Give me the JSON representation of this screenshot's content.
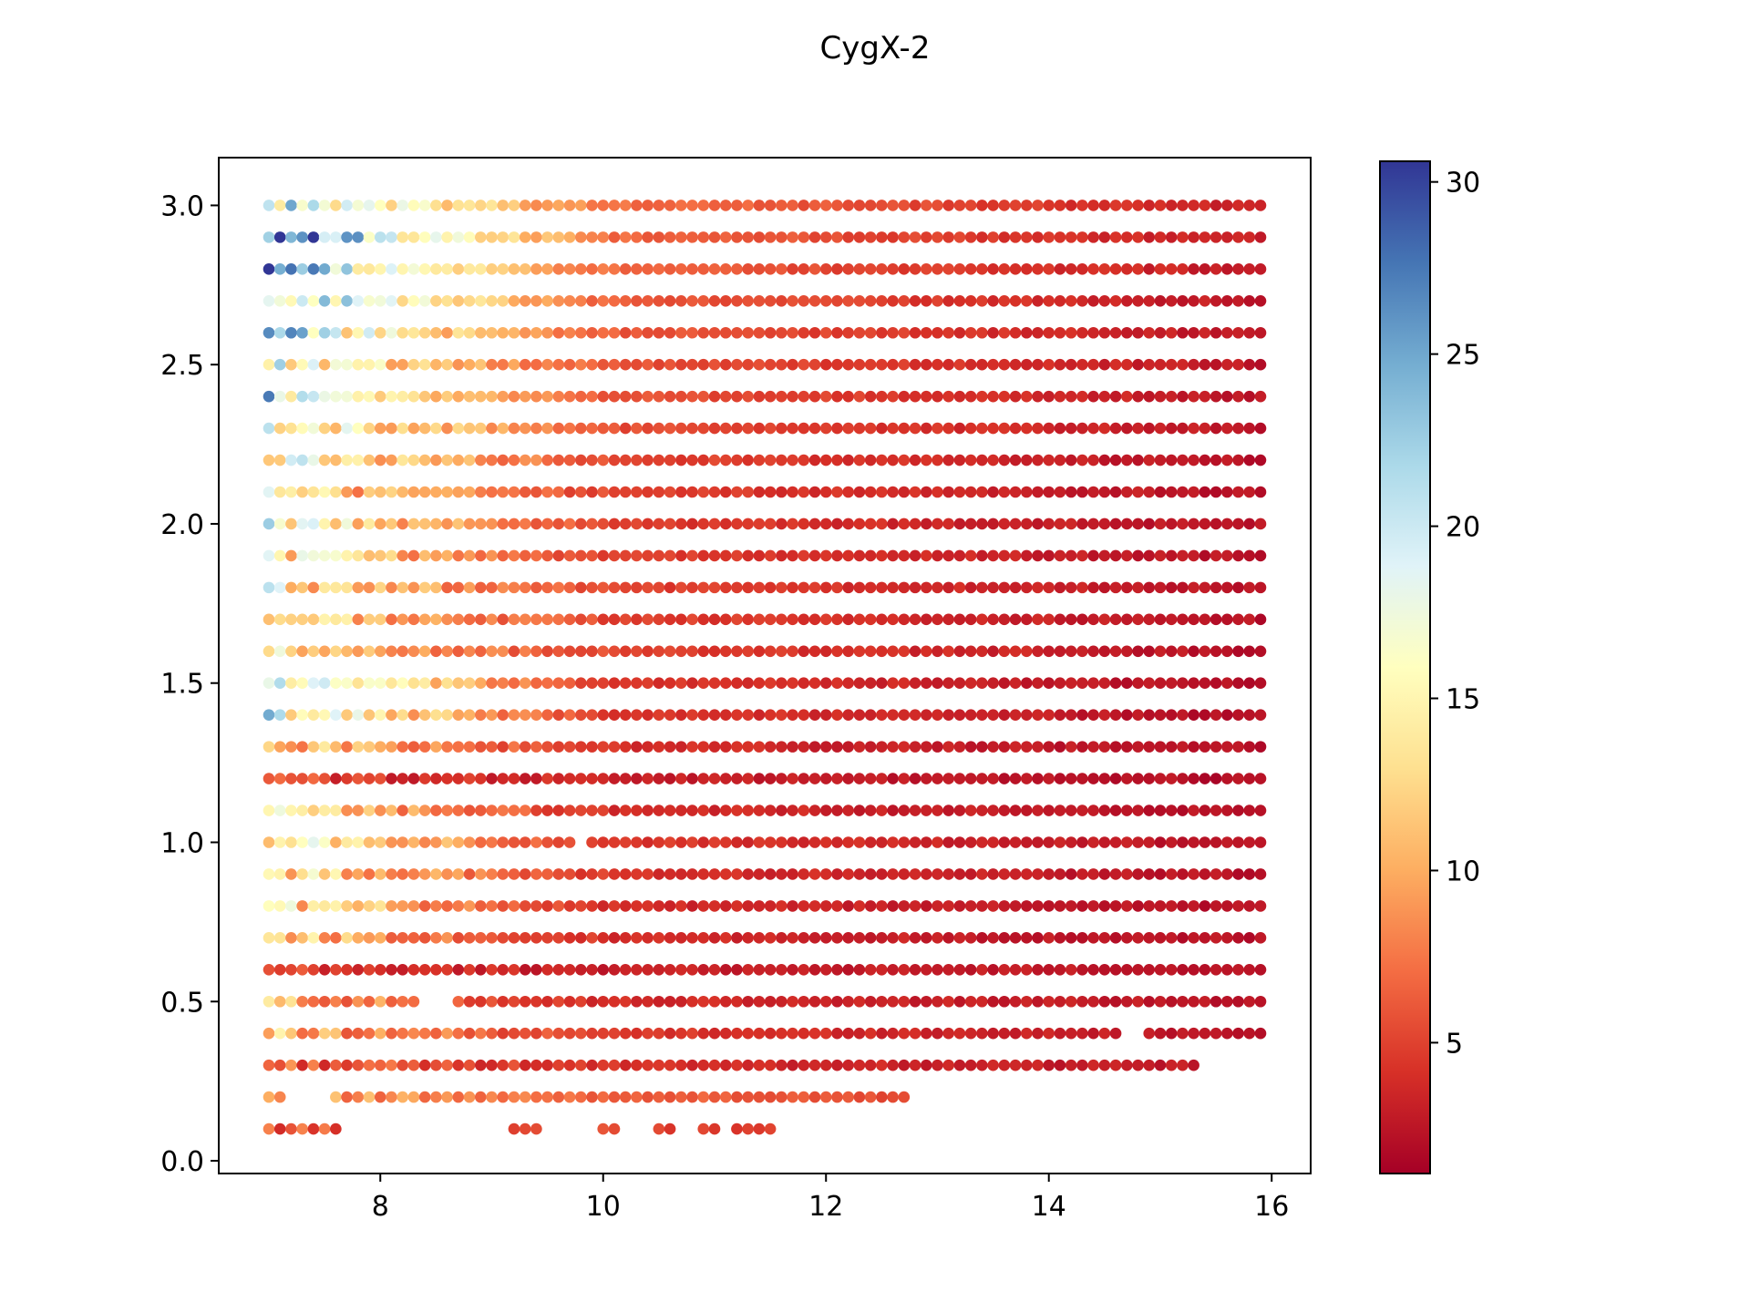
{
  "chart_data": {
    "type": "scatter",
    "title": "CygX-2",
    "xlabel": "",
    "ylabel": "",
    "xlim": [
      6.55,
      16.35
    ],
    "ylim": [
      -0.04,
      3.15
    ],
    "xticks": [
      8,
      10,
      12,
      14,
      16
    ],
    "xtick_labels": [
      "8",
      "10",
      "12",
      "14",
      "16"
    ],
    "yticks": [
      0.0,
      0.5,
      1.0,
      1.5,
      2.0,
      2.5,
      3.0
    ],
    "ytick_labels": [
      "0.0",
      "0.5",
      "1.0",
      "1.5",
      "2.0",
      "2.5",
      "3.0"
    ],
    "grid": false,
    "colorbar": {
      "colormap": "RdYlBu",
      "range": [
        1.2,
        30.6
      ],
      "ticks": [
        5,
        10,
        15,
        20,
        25,
        30
      ],
      "tick_labels": [
        "5",
        "10",
        "15",
        "20",
        "25",
        "30"
      ]
    },
    "x_grid": {
      "start": 7.0,
      "step": 0.1,
      "count": 90
    },
    "y_levels": [
      0.1,
      0.2,
      0.3,
      0.4,
      0.5,
      0.6,
      0.7,
      0.8,
      0.9,
      1.0,
      1.1,
      1.2,
      1.3,
      1.4,
      1.5,
      1.6,
      1.7,
      1.8,
      1.9,
      2.0,
      2.1,
      2.2,
      2.3,
      2.4,
      2.5,
      2.6,
      2.7,
      2.8,
      2.9,
      3.0
    ],
    "row_extents": [
      {
        "y": 0.1,
        "segments": [
          [
            7.0,
            7.6
          ],
          [
            9.2,
            9.4
          ],
          [
            10.0,
            10.1
          ],
          [
            10.5,
            10.6
          ],
          [
            10.9,
            11.0
          ],
          [
            11.2,
            11.5
          ]
        ]
      },
      {
        "y": 0.2,
        "segments": [
          [
            7.0,
            7.1
          ],
          [
            7.6,
            12.7
          ]
        ]
      },
      {
        "y": 0.3,
        "segments": [
          [
            7.0,
            15.3
          ]
        ]
      },
      {
        "y": 0.4,
        "segments": [
          [
            7.0,
            14.6
          ],
          [
            14.9,
            15.9
          ]
        ]
      },
      {
        "y": 0.5,
        "segments": [
          [
            7.0,
            8.3
          ],
          [
            8.7,
            15.9
          ]
        ]
      },
      {
        "y": 0.6,
        "segments": [
          [
            7.0,
            15.9
          ]
        ]
      },
      {
        "y": 0.7,
        "segments": [
          [
            7.0,
            15.9
          ]
        ]
      },
      {
        "y": 0.8,
        "segments": [
          [
            7.0,
            15.9
          ]
        ]
      },
      {
        "y": 0.9,
        "segments": [
          [
            7.0,
            15.9
          ]
        ]
      },
      {
        "y": 1.0,
        "segments": [
          [
            7.0,
            9.7
          ],
          [
            9.9,
            15.9
          ]
        ]
      },
      {
        "y": 1.1,
        "segments": [
          [
            7.0,
            15.9
          ]
        ]
      },
      {
        "y": 1.2,
        "segments": [
          [
            7.0,
            15.9
          ]
        ]
      },
      {
        "y": 1.3,
        "segments": [
          [
            7.0,
            15.9
          ]
        ]
      },
      {
        "y": 1.4,
        "segments": [
          [
            7.0,
            15.9
          ]
        ]
      },
      {
        "y": 1.5,
        "segments": [
          [
            7.0,
            15.9
          ]
        ]
      },
      {
        "y": 1.6,
        "segments": [
          [
            7.0,
            15.9
          ]
        ]
      },
      {
        "y": 1.7,
        "segments": [
          [
            7.0,
            15.9
          ]
        ]
      },
      {
        "y": 1.8,
        "segments": [
          [
            7.0,
            15.9
          ]
        ]
      },
      {
        "y": 1.9,
        "segments": [
          [
            7.0,
            15.9
          ]
        ]
      },
      {
        "y": 2.0,
        "segments": [
          [
            7.0,
            15.9
          ]
        ]
      },
      {
        "y": 2.1,
        "segments": [
          [
            7.0,
            15.9
          ]
        ]
      },
      {
        "y": 2.2,
        "segments": [
          [
            7.0,
            15.9
          ]
        ]
      },
      {
        "y": 2.3,
        "segments": [
          [
            7.0,
            15.9
          ]
        ]
      },
      {
        "y": 2.4,
        "segments": [
          [
            7.0,
            15.9
          ]
        ]
      },
      {
        "y": 2.5,
        "segments": [
          [
            7.0,
            15.9
          ]
        ]
      },
      {
        "y": 2.6,
        "segments": [
          [
            7.0,
            15.9
          ]
        ]
      },
      {
        "y": 2.7,
        "segments": [
          [
            7.0,
            15.9
          ]
        ]
      },
      {
        "y": 2.8,
        "segments": [
          [
            7.0,
            15.9
          ]
        ]
      },
      {
        "y": 2.9,
        "segments": [
          [
            7.0,
            15.9
          ]
        ]
      },
      {
        "y": 3.0,
        "segments": [
          [
            7.0,
            15.9
          ]
        ]
      }
    ],
    "row_profiles": [
      {
        "y": 0.1,
        "left": 6.5,
        "mid": 5.0,
        "right": 4.5
      },
      {
        "y": 0.2,
        "left": 9.5,
        "mid": 6.5,
        "right": 4.0
      },
      {
        "y": 0.3,
        "left": 7.0,
        "mid": 4.0,
        "right": 2.5
      },
      {
        "y": 0.4,
        "left": 11.5,
        "mid": 4.5,
        "right": 2.5
      },
      {
        "y": 0.5,
        "left": 11.0,
        "mid": 3.8,
        "right": 2.5
      },
      {
        "y": 0.6,
        "left": 4.5,
        "mid": 3.2,
        "right": 2.5
      },
      {
        "y": 0.7,
        "left": 13.5,
        "mid": 3.8,
        "right": 2.2
      },
      {
        "y": 0.8,
        "left": 15.5,
        "mid": 3.8,
        "right": 2.2
      },
      {
        "y": 0.9,
        "left": 15.0,
        "mid": 4.2,
        "right": 2.2
      },
      {
        "y": 1.0,
        "left": 17.5,
        "mid": 4.5,
        "right": 2.2
      },
      {
        "y": 1.1,
        "left": 14.0,
        "mid": 4.0,
        "right": 2.0
      },
      {
        "y": 1.2,
        "left": 5.5,
        "mid": 3.2,
        "right": 2.0
      },
      {
        "y": 1.3,
        "left": 13.5,
        "mid": 4.0,
        "right": 2.0
      },
      {
        "y": 1.4,
        "left": 19.5,
        "mid": 4.5,
        "right": 2.0
      },
      {
        "y": 1.5,
        "left": 20.5,
        "mid": 4.5,
        "right": 2.0
      },
      {
        "y": 1.6,
        "left": 13.5,
        "mid": 5.0,
        "right": 2.2
      },
      {
        "y": 1.7,
        "left": 14.0,
        "mid": 5.0,
        "right": 2.2
      },
      {
        "y": 1.8,
        "left": 15.0,
        "mid": 5.0,
        "right": 2.2
      },
      {
        "y": 1.9,
        "left": 16.0,
        "mid": 4.8,
        "right": 2.2
      },
      {
        "y": 2.0,
        "left": 17.5,
        "mid": 4.8,
        "right": 2.2
      },
      {
        "y": 2.1,
        "left": 14.5,
        "mid": 5.0,
        "right": 2.2
      },
      {
        "y": 2.2,
        "left": 18.0,
        "mid": 5.2,
        "right": 2.2
      },
      {
        "y": 2.3,
        "left": 19.0,
        "mid": 5.5,
        "right": 2.5
      },
      {
        "y": 2.4,
        "left": 20.5,
        "mid": 5.8,
        "right": 2.5
      },
      {
        "y": 2.5,
        "left": 18.5,
        "mid": 5.8,
        "right": 2.5
      },
      {
        "y": 2.6,
        "left": 22.0,
        "mid": 6.0,
        "right": 2.5
      },
      {
        "y": 2.7,
        "left": 25.0,
        "mid": 6.2,
        "right": 2.5
      },
      {
        "y": 2.8,
        "left": 25.5,
        "mid": 6.5,
        "right": 2.8
      },
      {
        "y": 2.9,
        "left": 29.5,
        "mid": 6.8,
        "right": 2.8
      },
      {
        "y": 3.0,
        "left": 23.5,
        "mid": 7.2,
        "right": 3.0
      }
    ]
  }
}
